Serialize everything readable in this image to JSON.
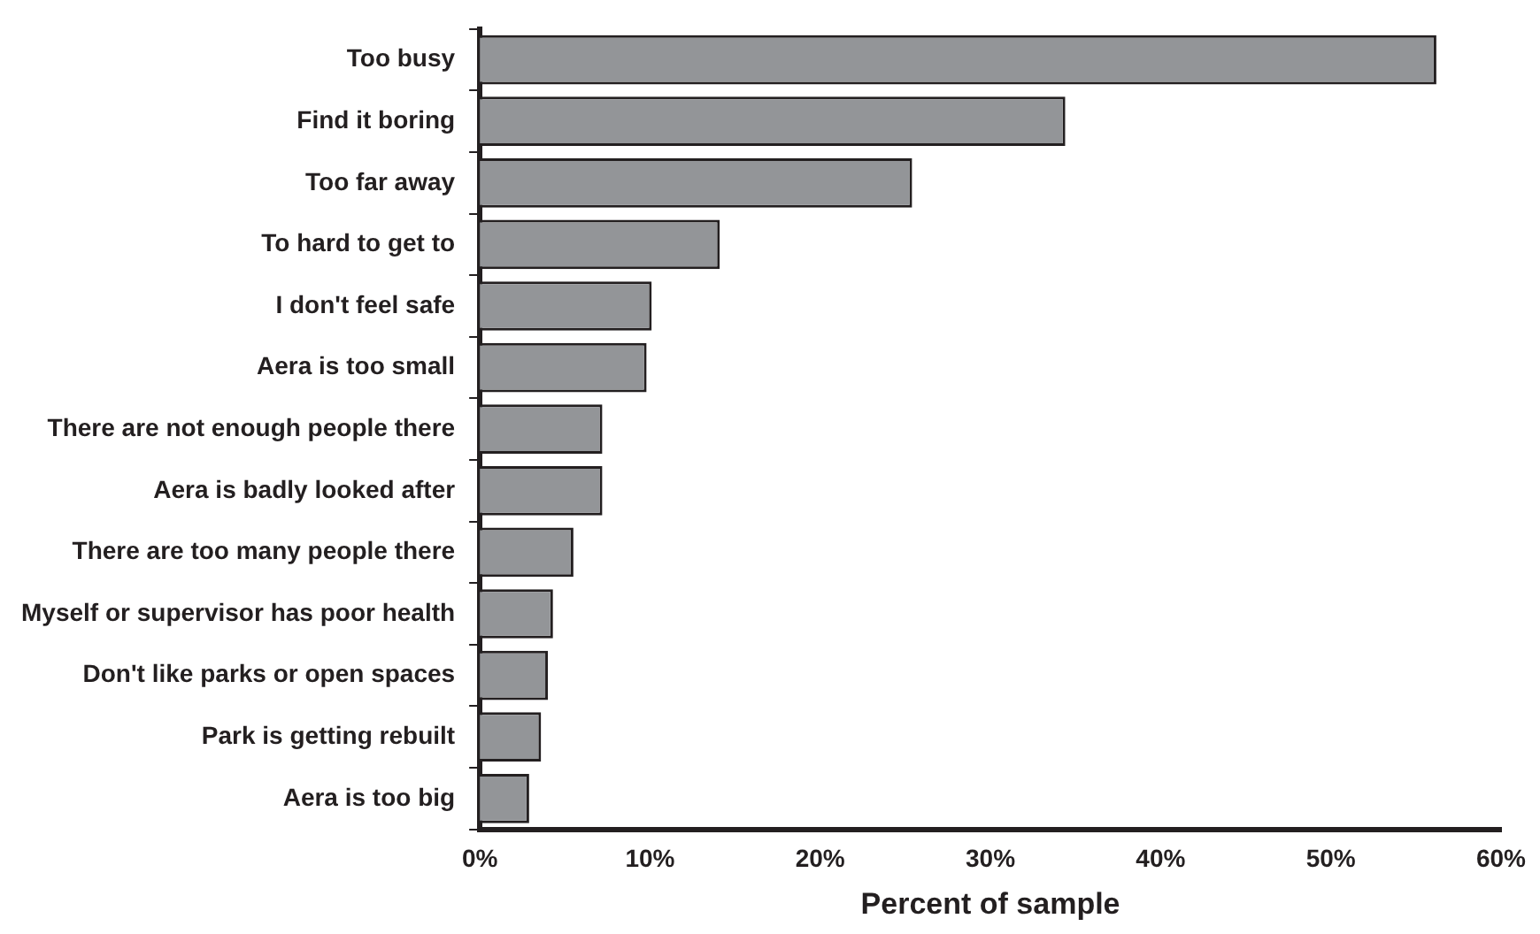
{
  "chart_data": {
    "type": "bar",
    "orientation": "horizontal",
    "xlabel": "Percent of sample",
    "categories": [
      "Too busy",
      "Find it boring",
      "Too far away",
      "To hard to get to",
      "I don't feel safe",
      "Aera is too small",
      "There are not enough people there",
      "Aera is badly looked after",
      "There are too many people there",
      "Myself or supervisor has poor health",
      "Don't like parks or open spaces",
      "Park is getting rebuilt",
      "Aera is too big"
    ],
    "values": [
      56.2,
      34.4,
      25.4,
      14.1,
      10.1,
      9.8,
      7.2,
      7.2,
      5.5,
      4.3,
      4.0,
      3.6,
      2.9
    ],
    "color": "#939598",
    "xlim": [
      0,
      60
    ],
    "xticks": [
      {
        "value": 0,
        "label": "0%"
      },
      {
        "value": 10,
        "label": "10%"
      },
      {
        "value": 20,
        "label": "20%"
      },
      {
        "value": 30,
        "label": "30%"
      },
      {
        "value": 40,
        "label": "40%"
      },
      {
        "value": 50,
        "label": "50%"
      },
      {
        "value": 60,
        "label": "60%"
      }
    ],
    "grid": false,
    "legend": false
  }
}
